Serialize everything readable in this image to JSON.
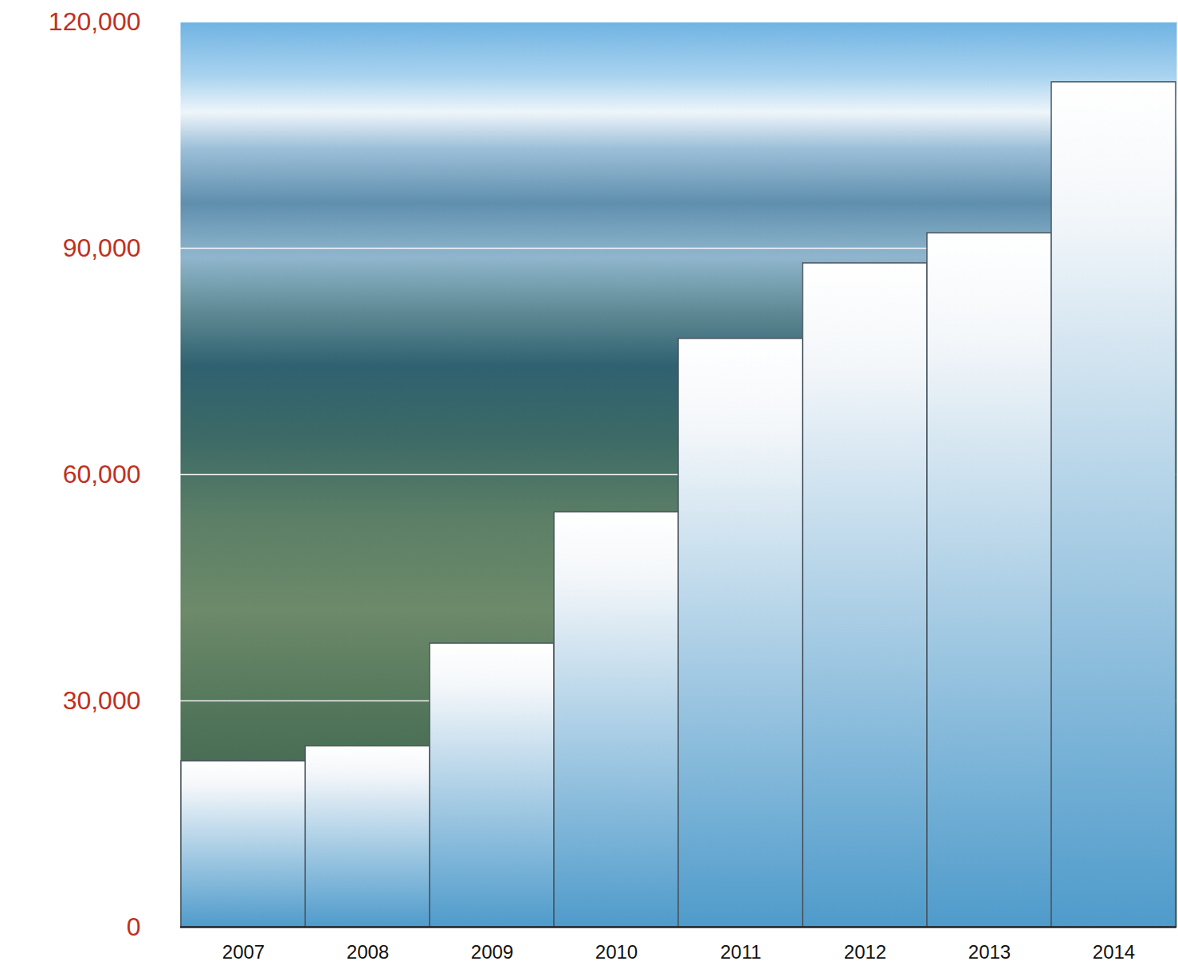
{
  "chart_data": {
    "type": "bar",
    "categories": [
      "2007",
      "2008",
      "2009",
      "2010",
      "2011",
      "2012",
      "2013",
      "2014"
    ],
    "values": [
      22000,
      24000,
      37600,
      55000,
      78000,
      88000,
      92000,
      112000
    ],
    "color": "#4f9bcb",
    "ylim": [
      0,
      120000
    ],
    "yticks": [
      0,
      {
        "value": 30000,
        "label": "30,000"
      },
      {
        "value": 60000,
        "label": "60,000"
      },
      {
        "value": 90000,
        "label": "90,000"
      },
      {
        "value": 120000,
        "label": "120,000"
      }
    ],
    "grid": true
  }
}
